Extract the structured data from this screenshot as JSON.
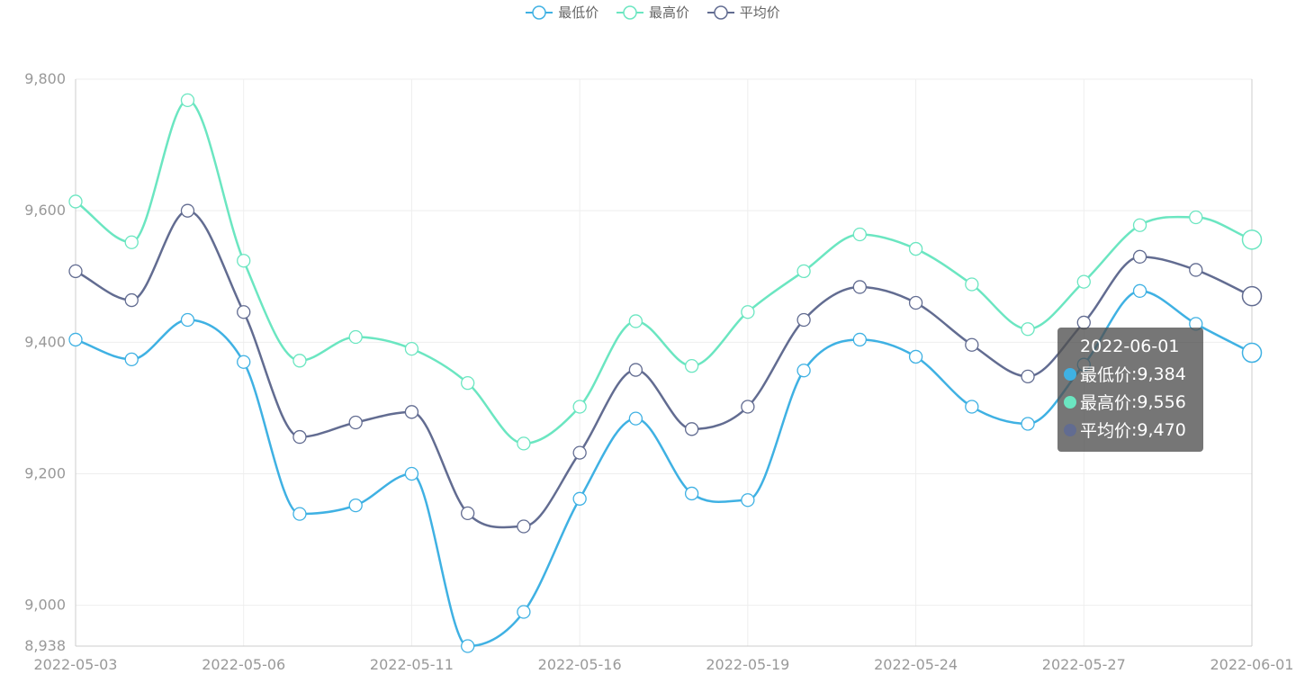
{
  "legend": [
    {
      "label": "最低价",
      "color": "#3fb1e3"
    },
    {
      "label": "最高价",
      "color": "#6be6c1"
    },
    {
      "label": "平均价",
      "color": "#626c91"
    }
  ],
  "tooltip": {
    "title": "2022-06-01",
    "rows": [
      {
        "name": "最低价",
        "value": "9,384",
        "color": "#3fb1e3"
      },
      {
        "name": "最高价",
        "value": "9,556",
        "color": "#6be6c1"
      },
      {
        "name": "平均价",
        "value": "9,470",
        "color": "#626c91"
      }
    ]
  },
  "chart_data": {
    "type": "line",
    "smooth": true,
    "x": [
      "2022-05-03",
      "2022-05-04",
      "2022-05-05",
      "2022-05-06",
      "2022-05-09",
      "2022-05-10",
      "2022-05-11",
      "2022-05-12",
      "2022-05-13",
      "2022-05-16",
      "2022-05-17",
      "2022-05-18",
      "2022-05-19",
      "2022-05-20",
      "2022-05-23",
      "2022-05-24",
      "2022-05-25",
      "2022-05-26",
      "2022-05-27",
      "2022-05-30",
      "2022-05-31",
      "2022-06-01"
    ],
    "x_tick_labels": [
      "2022-05-03",
      "2022-05-06",
      "2022-05-11",
      "2022-05-16",
      "2022-05-19",
      "2022-05-24",
      "2022-05-27",
      "2022-06-01"
    ],
    "x_tick_every": 3,
    "y_ticks": [
      8938,
      9000,
      9200,
      9400,
      9600,
      9800
    ],
    "y_tick_labels": [
      "8,938",
      "9,000",
      "9,200",
      "9,400",
      "9,600",
      "9,800"
    ],
    "ylim": [
      8938,
      9800
    ],
    "grid": true,
    "legend_position": "top-center",
    "series": [
      {
        "name": "最低价",
        "color": "#3fb1e3",
        "values": [
          9404,
          9374,
          9434,
          9370,
          9139,
          9152,
          9200,
          8938,
          8990,
          9162,
          9284,
          9170,
          9160,
          9357,
          9404,
          9378,
          9302,
          9276,
          9366,
          9478,
          9428,
          9384
        ]
      },
      {
        "name": "最高价",
        "color": "#6be6c1",
        "values": [
          9614,
          9552,
          9768,
          9524,
          9372,
          9408,
          9390,
          9338,
          9246,
          9302,
          9432,
          9364,
          9446,
          9508,
          9564,
          9542,
          9488,
          9420,
          9492,
          9578,
          9590,
          9556
        ]
      },
      {
        "name": "平均价",
        "color": "#626c91",
        "values": [
          9508,
          9464,
          9600,
          9446,
          9256,
          9278,
          9294,
          9140,
          9120,
          9232,
          9358,
          9268,
          9302,
          9434,
          9484,
          9460,
          9396,
          9348,
          9430,
          9530,
          9510,
          9470
        ]
      }
    ]
  }
}
